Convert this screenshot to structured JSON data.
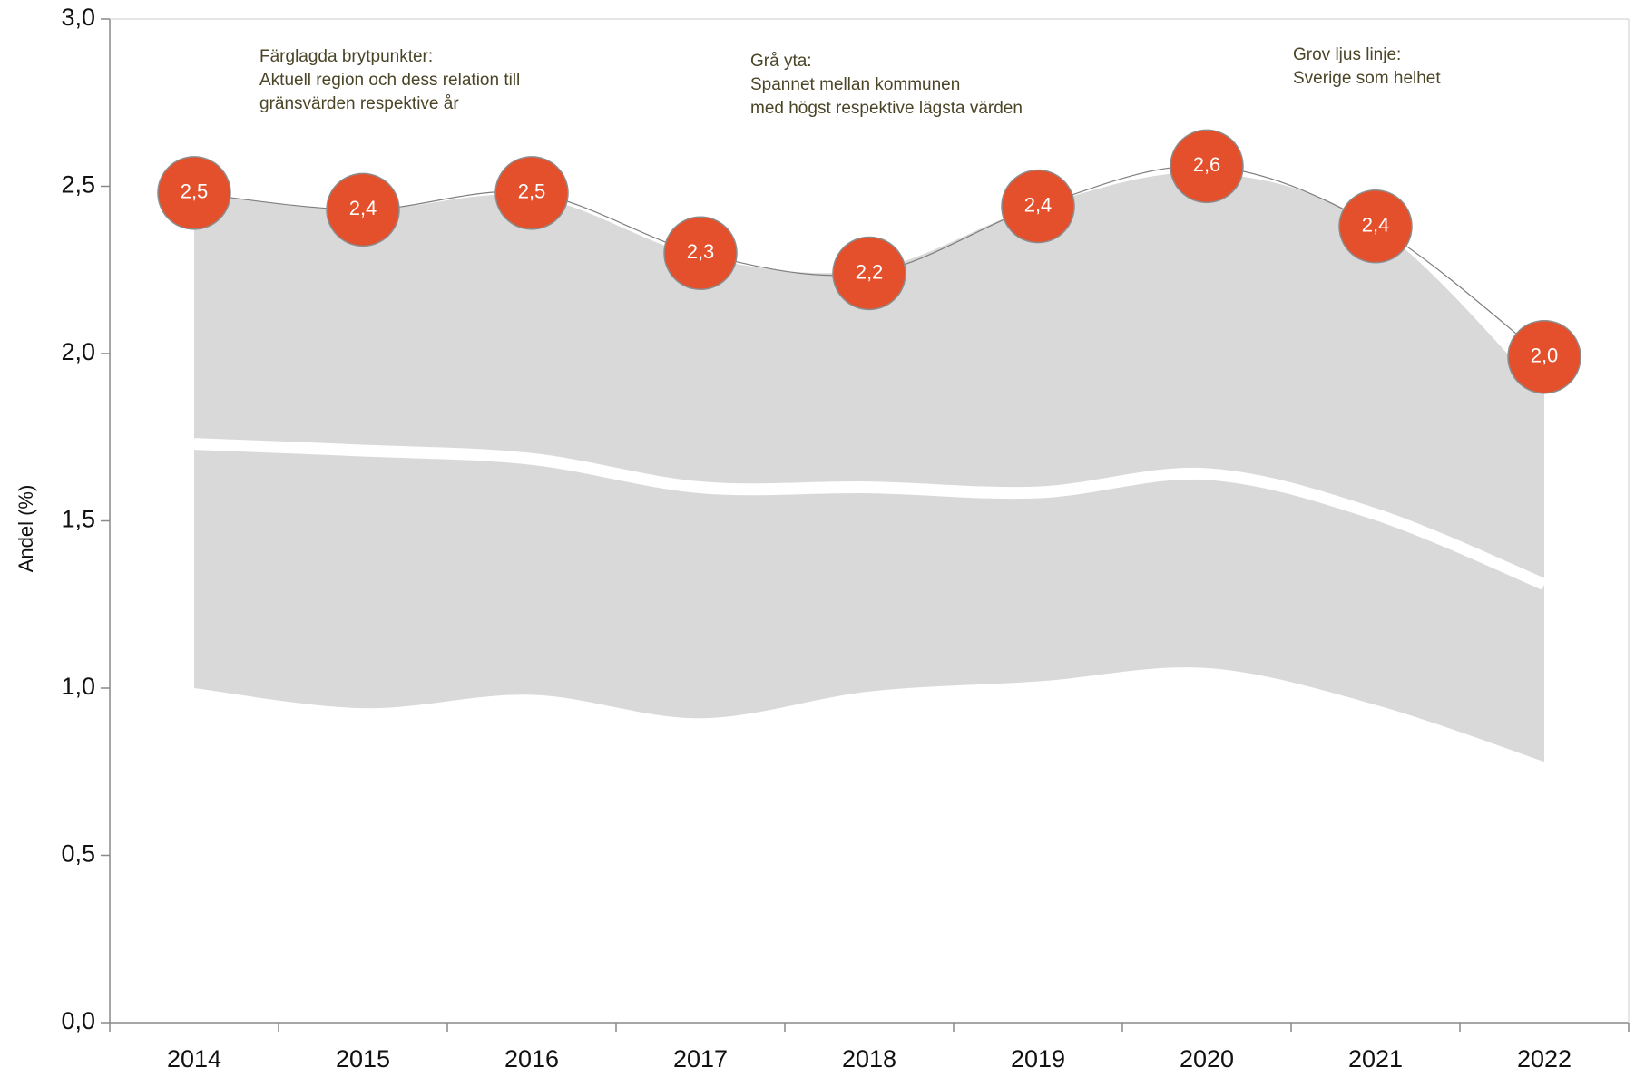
{
  "chart_data": {
    "type": "line",
    "categories": [
      "2014",
      "2015",
      "2016",
      "2017",
      "2018",
      "2019",
      "2020",
      "2021",
      "2022"
    ],
    "ylabel": "Andel (%)",
    "ylim": [
      0,
      3
    ],
    "yticks": [
      {
        "value": 0,
        "label": "0,0"
      },
      {
        "value": 0.5,
        "label": "0,5"
      },
      {
        "value": 1,
        "label": "1,0"
      },
      {
        "value": 1.5,
        "label": "1,5"
      },
      {
        "value": 2,
        "label": "2,0"
      },
      {
        "value": 2.5,
        "label": "2,5"
      },
      {
        "value": 3,
        "label": "3,0"
      }
    ],
    "range": {
      "color": "#d9d9d9",
      "max": [
        2.48,
        2.43,
        2.47,
        2.29,
        2.25,
        2.44,
        2.54,
        2.38,
        1.88
      ],
      "min": [
        1.0,
        0.94,
        0.98,
        0.91,
        0.99,
        1.02,
        1.06,
        0.95,
        0.78
      ]
    },
    "sweden": {
      "color": "#ffffff",
      "values": [
        1.73,
        1.71,
        1.685,
        1.6,
        1.6,
        1.585,
        1.64,
        1.52,
        1.31
      ]
    },
    "region": {
      "color": "#e4502b",
      "line_color": "#7f7f7f",
      "values": [
        2.48,
        2.43,
        2.48,
        2.3,
        2.24,
        2.44,
        2.56,
        2.38,
        1.99
      ],
      "value_labels": [
        "2,5",
        "2,4",
        "2,5",
        "2,3",
        "2,2",
        "2,4",
        "2,6",
        "2,4",
        "2,0"
      ]
    },
    "annotations": [
      [
        "Färglagda brytpunkter:",
        "Aktuell region och dess relation till",
        "gränsvärden respektive år"
      ],
      [
        "Grå yta:",
        "Spannet mellan kommunen",
        "med högst respektive lägsta värden"
      ],
      [
        "Grov ljus linje:",
        "Sverige som helhet"
      ]
    ]
  }
}
